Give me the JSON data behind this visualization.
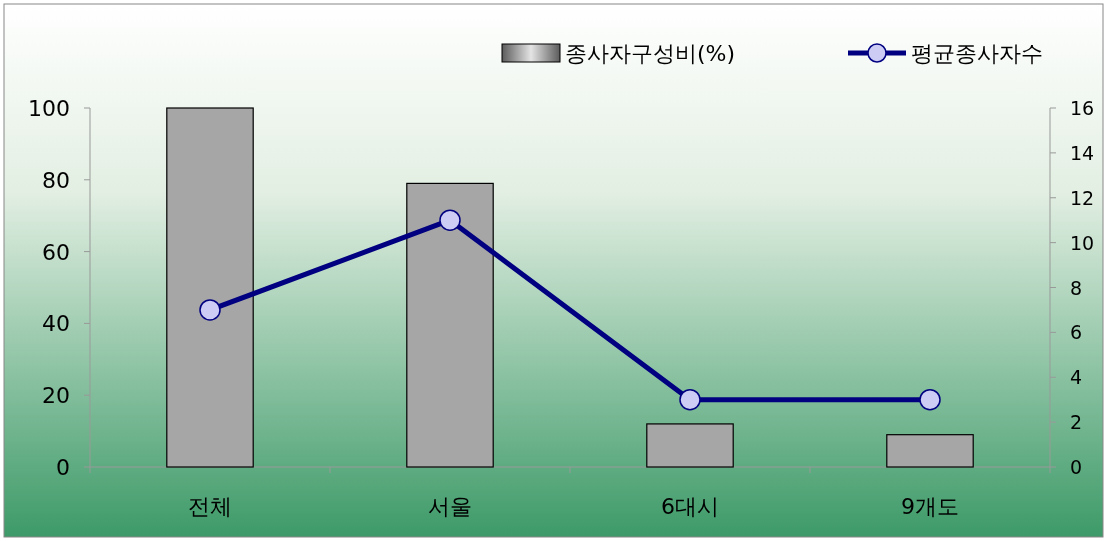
{
  "chart_data": {
    "type": "bar",
    "categories": [
      "전체",
      "서울",
      "6대시",
      "9개도"
    ],
    "series": [
      {
        "name": "종사자구성비(%)",
        "color": "#a6a6a6",
        "values": [
          100,
          79,
          12,
          9
        ]
      },
      {
        "name": "평균종사자수",
        "type": "line",
        "axis": "y2",
        "color": "#000080",
        "values": [
          7,
          11,
          3,
          3
        ]
      }
    ],
    "ylim": [
      0,
      100
    ],
    "yticks": [
      0,
      20,
      40,
      60,
      80,
      100
    ],
    "y2lim": [
      0,
      16
    ],
    "y2ticks": [
      0,
      2,
      4,
      6,
      8,
      10,
      12,
      14,
      16
    ],
    "legend": "top right",
    "marker": "circle",
    "grid": false
  }
}
